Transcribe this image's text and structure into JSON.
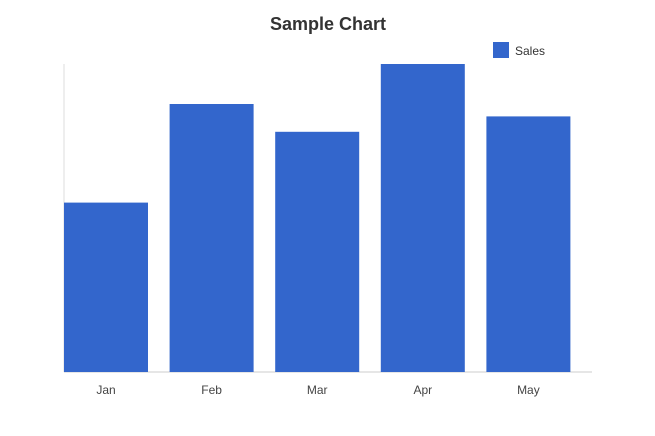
{
  "chart_data": {
    "type": "bar",
    "title": "Sample Chart",
    "categories": [
      "Jan",
      "Feb",
      "Mar",
      "Apr",
      "May"
    ],
    "series": [
      {
        "name": "Sales",
        "color": "#3366CC",
        "values": [
          55,
          87,
          78,
          100,
          83
        ]
      }
    ],
    "xlabel": "",
    "ylabel": "",
    "ylim": [
      0,
      100
    ],
    "grid": false,
    "legend": "top-right"
  }
}
